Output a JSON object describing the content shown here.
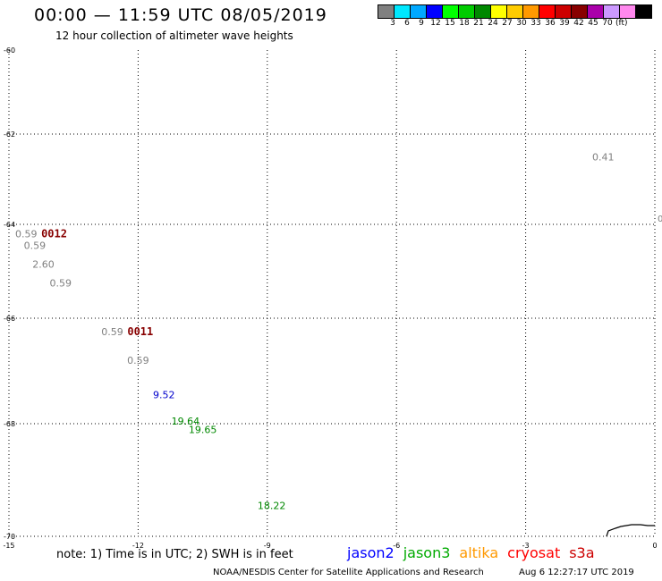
{
  "header": {
    "title": "00:00 — 11:59 UTC 08/05/2019",
    "subtitle": "12 hour collection of altimeter wave heights"
  },
  "legend": {
    "swatches": [
      {
        "color": "#808080",
        "label": "3"
      },
      {
        "color": "#00e8ff",
        "label": "6"
      },
      {
        "color": "#00a8ff",
        "label": "9"
      },
      {
        "color": "#0000ff",
        "label": "12"
      },
      {
        "color": "#00ff00",
        "label": "15"
      },
      {
        "color": "#00cc00",
        "label": "18"
      },
      {
        "color": "#008800",
        "label": "21"
      },
      {
        "color": "#ffff00",
        "label": "24"
      },
      {
        "color": "#ffcc00",
        "label": "27"
      },
      {
        "color": "#ff9900",
        "label": "30"
      },
      {
        "color": "#ff0000",
        "label": "33"
      },
      {
        "color": "#cc0000",
        "label": "36"
      },
      {
        "color": "#880000",
        "label": "39"
      },
      {
        "color": "#aa00aa",
        "label": "42"
      },
      {
        "color": "#cc99ff",
        "label": "45"
      },
      {
        "color": "#ff88ee",
        "label": "70"
      },
      {
        "color": "#000000",
        "label": ""
      }
    ],
    "unit": "(ft)"
  },
  "axes": {
    "lon_range": [
      -15,
      0
    ],
    "lat_range": [
      -70,
      -60
    ],
    "lon_labels": [
      "-15",
      "-12",
      "-9",
      "-6",
      "-3",
      "0"
    ],
    "lat_labels": [
      "-60",
      "-62",
      "-64",
      "-66",
      "-68",
      "-70"
    ]
  },
  "observations": [
    {
      "text": "0.41",
      "lon": -1.2,
      "lat": -62.5,
      "color": "#808080"
    },
    {
      "text": "0.59",
      "lon": -14.6,
      "lat": -64.2,
      "color": "#808080"
    },
    {
      "text": "0.59",
      "lon": -14.4,
      "lat": -64.45,
      "color": "#808080"
    },
    {
      "text": "2.60",
      "lon": -14.2,
      "lat": -64.85,
      "color": "#808080"
    },
    {
      "text": "0.59",
      "lon": -13.8,
      "lat": -65.25,
      "color": "#808080"
    },
    {
      "text": "0.59",
      "lon": -12.6,
      "lat": -66.25,
      "color": "#808080"
    },
    {
      "text": "0.59",
      "lon": -12.0,
      "lat": -66.8,
      "color": "#808080"
    },
    {
      "text": "9.52",
      "lon": -11.4,
      "lat": -67.45,
      "color": "#0000cc"
    },
    {
      "text": "19.64",
      "lon": -10.9,
      "lat": -67.95,
      "color": "#008800"
    },
    {
      "text": "19.65",
      "lon": -10.5,
      "lat": -68.1,
      "color": "#008800"
    },
    {
      "text": "18.22",
      "lon": -8.9,
      "lat": -69.45,
      "color": "#008800"
    }
  ],
  "time_markers": [
    {
      "text": "0012",
      "lon": -13.95,
      "lat": -64.2,
      "color": "#880000"
    },
    {
      "text": "0011",
      "lon": -11.95,
      "lat": -66.25,
      "color": "#880000"
    }
  ],
  "edge_fragment": "0",
  "note": "note: 1) Time is in UTC; 2) SWH is in feet",
  "satellites": [
    {
      "name": "jason2",
      "color": "#0000ff"
    },
    {
      "name": "jason3",
      "color": "#00aa00"
    },
    {
      "name": "altika",
      "color": "#ff9900"
    },
    {
      "name": "cryosat",
      "color": "#ff0000"
    },
    {
      "name": "s3a",
      "color": "#cc0000"
    }
  ],
  "footer": {
    "org": "NOAA/NESDIS Center for Satellite Applications and Research",
    "timestamp": "Aug  6 12:27:17 UTC 2019"
  }
}
